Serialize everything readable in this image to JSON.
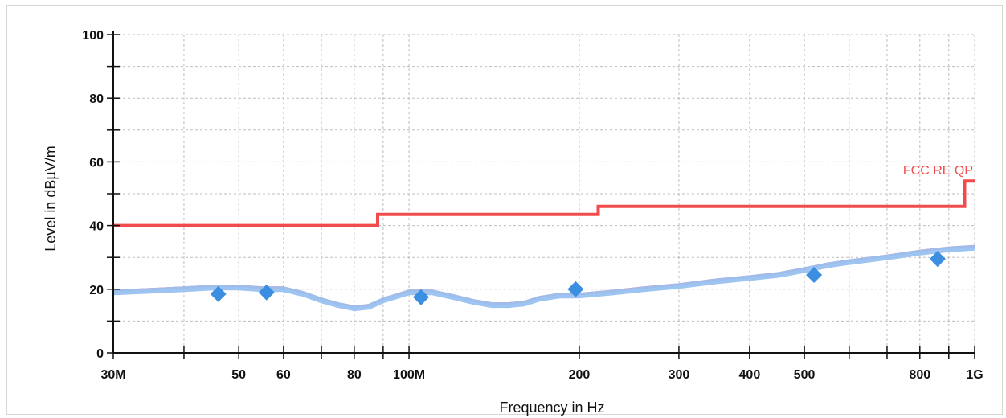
{
  "chart_data": {
    "type": "line",
    "xlabel": "Frequency in Hz",
    "ylabel": "Level in dBµV/m",
    "x_scale": "log",
    "xlim": [
      30000000,
      1000000000
    ],
    "ylim": [
      0,
      100
    ],
    "grid": true,
    "x_ticks": [
      {
        "value": 30000000,
        "label": "30M"
      },
      {
        "value": 50000000,
        "label": "50"
      },
      {
        "value": 60000000,
        "label": "60"
      },
      {
        "value": 80000000,
        "label": "80"
      },
      {
        "value": 100000000,
        "label": "100M"
      },
      {
        "value": 200000000,
        "label": "200"
      },
      {
        "value": 300000000,
        "label": "300"
      },
      {
        "value": 400000000,
        "label": "400"
      },
      {
        "value": 500000000,
        "label": "500"
      },
      {
        "value": 800000000,
        "label": "800"
      },
      {
        "value": 1000000000,
        "label": "1G"
      }
    ],
    "y_ticks": [
      {
        "value": 0,
        "label": "0"
      },
      {
        "value": 20,
        "label": "20"
      },
      {
        "value": 40,
        "label": "40"
      },
      {
        "value": 60,
        "label": "60"
      },
      {
        "value": 80,
        "label": "80"
      },
      {
        "value": 100,
        "label": "100"
      }
    ],
    "limit_line": {
      "name": "FCC RE QP",
      "color": "#f24b4b",
      "x": [
        30000000,
        88000000,
        88000000,
        216000000,
        216000000,
        960000000,
        960000000,
        1000000000
      ],
      "y": [
        40,
        40,
        43.5,
        43.5,
        46,
        46,
        54,
        54
      ]
    },
    "trace_peak": {
      "color": "#ee6a8a",
      "x": [
        30000000,
        35000000,
        40000000,
        45000000,
        50000000,
        55000000,
        60000000,
        65000000,
        70000000,
        75000000,
        80000000,
        85000000,
        90000000,
        100000000,
        110000000,
        120000000,
        130000000,
        140000000,
        150000000,
        160000000,
        170000000,
        185000000,
        200000000,
        230000000,
        260000000,
        300000000,
        350000000,
        400000000,
        450000000,
        500000000,
        550000000,
        600000000,
        700000000,
        800000000,
        900000000,
        1000000000
      ],
      "y": [
        19.5,
        20,
        20.5,
        21,
        21,
        20.5,
        20.5,
        19,
        17,
        15.5,
        14.5,
        15,
        17,
        19.5,
        19.5,
        18,
        16.5,
        15.5,
        15.5,
        16,
        17.5,
        18.5,
        18.5,
        19.5,
        20.5,
        21.5,
        23,
        24,
        25,
        26.5,
        28,
        29,
        30.5,
        32,
        33,
        33.5
      ]
    },
    "trace_avg": {
      "color": "#99c2f0",
      "x": [
        30000000,
        35000000,
        40000000,
        45000000,
        50000000,
        55000000,
        60000000,
        65000000,
        70000000,
        75000000,
        80000000,
        85000000,
        90000000,
        100000000,
        110000000,
        120000000,
        130000000,
        140000000,
        150000000,
        160000000,
        170000000,
        185000000,
        200000000,
        230000000,
        260000000,
        300000000,
        350000000,
        400000000,
        450000000,
        500000000,
        550000000,
        600000000,
        700000000,
        800000000,
        900000000,
        1000000000
      ],
      "y": [
        19,
        19.5,
        20,
        20.5,
        20.5,
        20,
        20,
        18.5,
        16.5,
        15,
        14,
        14.5,
        16.5,
        19,
        19,
        17.5,
        16,
        15,
        15,
        15.5,
        17,
        18,
        18,
        19,
        20,
        21,
        22.5,
        23.5,
        24.5,
        26,
        27.5,
        28.5,
        30,
        31.5,
        32.5,
        33
      ]
    },
    "markers": {
      "color": "#3b8ee0",
      "points": [
        {
          "x": 46000000,
          "y": 18.5
        },
        {
          "x": 56000000,
          "y": 19
        },
        {
          "x": 105000000,
          "y": 17.5
        },
        {
          "x": 197000000,
          "y": 20
        },
        {
          "x": 520000000,
          "y": 24.5
        },
        {
          "x": 860000000,
          "y": 29.5
        }
      ]
    }
  }
}
